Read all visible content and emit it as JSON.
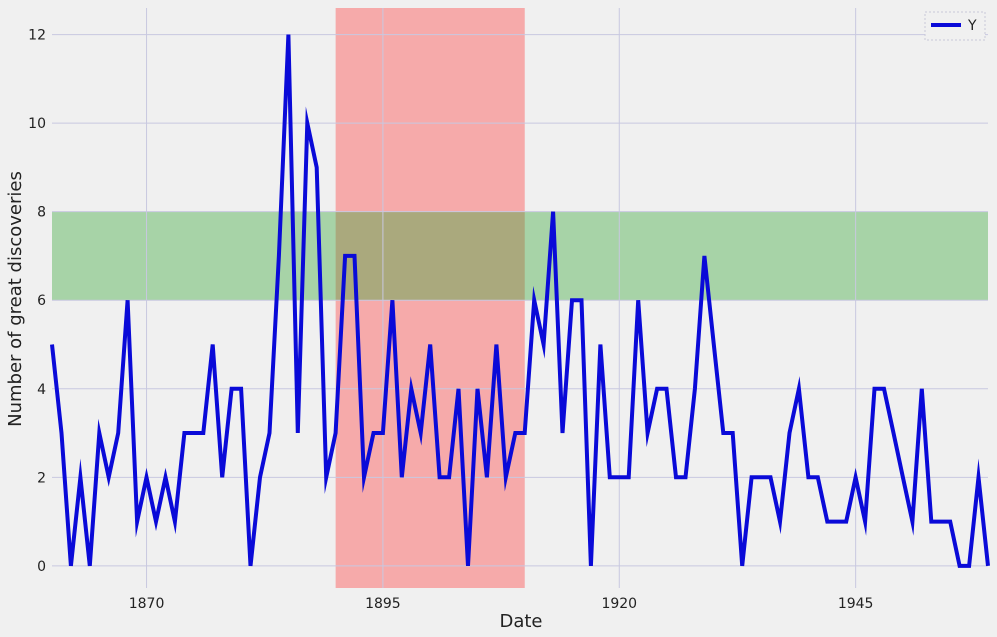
{
  "chart_data": {
    "type": "line",
    "title": "",
    "xlabel": "Date",
    "ylabel": "Number of great discoveries",
    "xlim": [
      1860,
      1959
    ],
    "ylim": [
      -0.5,
      12.6
    ],
    "x_ticks": [
      1870,
      1895,
      1920,
      1945
    ],
    "y_ticks": [
      0,
      2,
      4,
      6,
      8,
      10,
      12
    ],
    "grid": true,
    "legend_position": "top-right",
    "background_color": "#f0f0f0",
    "grid_color": "#c8c8e0",
    "spans": [
      {
        "axis": "x",
        "from": 1890,
        "to": 1910,
        "color": "#ff4040",
        "opacity": 0.4
      },
      {
        "axis": "y",
        "from": 6,
        "to": 8,
        "color": "#3aa83a",
        "opacity": 0.4
      }
    ],
    "series": [
      {
        "name": "Y",
        "color": "#0a0ad8",
        "x": [
          1860,
          1861,
          1862,
          1863,
          1864,
          1865,
          1866,
          1867,
          1868,
          1869,
          1870,
          1871,
          1872,
          1873,
          1874,
          1875,
          1876,
          1877,
          1878,
          1879,
          1880,
          1881,
          1882,
          1883,
          1884,
          1885,
          1886,
          1887,
          1888,
          1889,
          1890,
          1891,
          1892,
          1893,
          1894,
          1895,
          1896,
          1897,
          1898,
          1899,
          1900,
          1901,
          1902,
          1903,
          1904,
          1905,
          1906,
          1907,
          1908,
          1909,
          1910,
          1911,
          1912,
          1913,
          1914,
          1915,
          1916,
          1917,
          1918,
          1919,
          1920,
          1921,
          1922,
          1923,
          1924,
          1925,
          1926,
          1927,
          1928,
          1929,
          1930,
          1931,
          1932,
          1933,
          1934,
          1935,
          1936,
          1937,
          1938,
          1939,
          1940,
          1941,
          1942,
          1943,
          1944,
          1945,
          1946,
          1947,
          1948,
          1949,
          1950,
          1951,
          1952,
          1953,
          1954,
          1955,
          1956,
          1957,
          1958,
          1959
        ],
        "values": [
          5,
          3,
          0,
          2,
          0,
          3,
          2,
          3,
          6,
          1,
          2,
          1,
          2,
          1,
          3,
          3,
          3,
          5,
          2,
          4,
          4,
          0,
          2,
          3,
          7,
          12,
          3,
          10,
          9,
          2,
          3,
          7,
          7,
          2,
          3,
          3,
          6,
          2,
          4,
          3,
          5,
          2,
          2,
          4,
          0,
          4,
          2,
          5,
          2,
          3,
          3,
          6,
          5,
          8,
          3,
          6,
          6,
          0,
          5,
          2,
          2,
          2,
          6,
          3,
          4,
          4,
          2,
          2,
          4,
          7,
          5,
          3,
          3,
          0,
          2,
          2,
          2,
          1,
          3,
          4,
          2,
          2,
          1,
          1,
          1,
          2,
          1,
          4,
          4,
          3,
          2,
          1,
          4,
          1,
          1,
          1,
          0,
          0,
          2,
          0
        ]
      }
    ]
  }
}
